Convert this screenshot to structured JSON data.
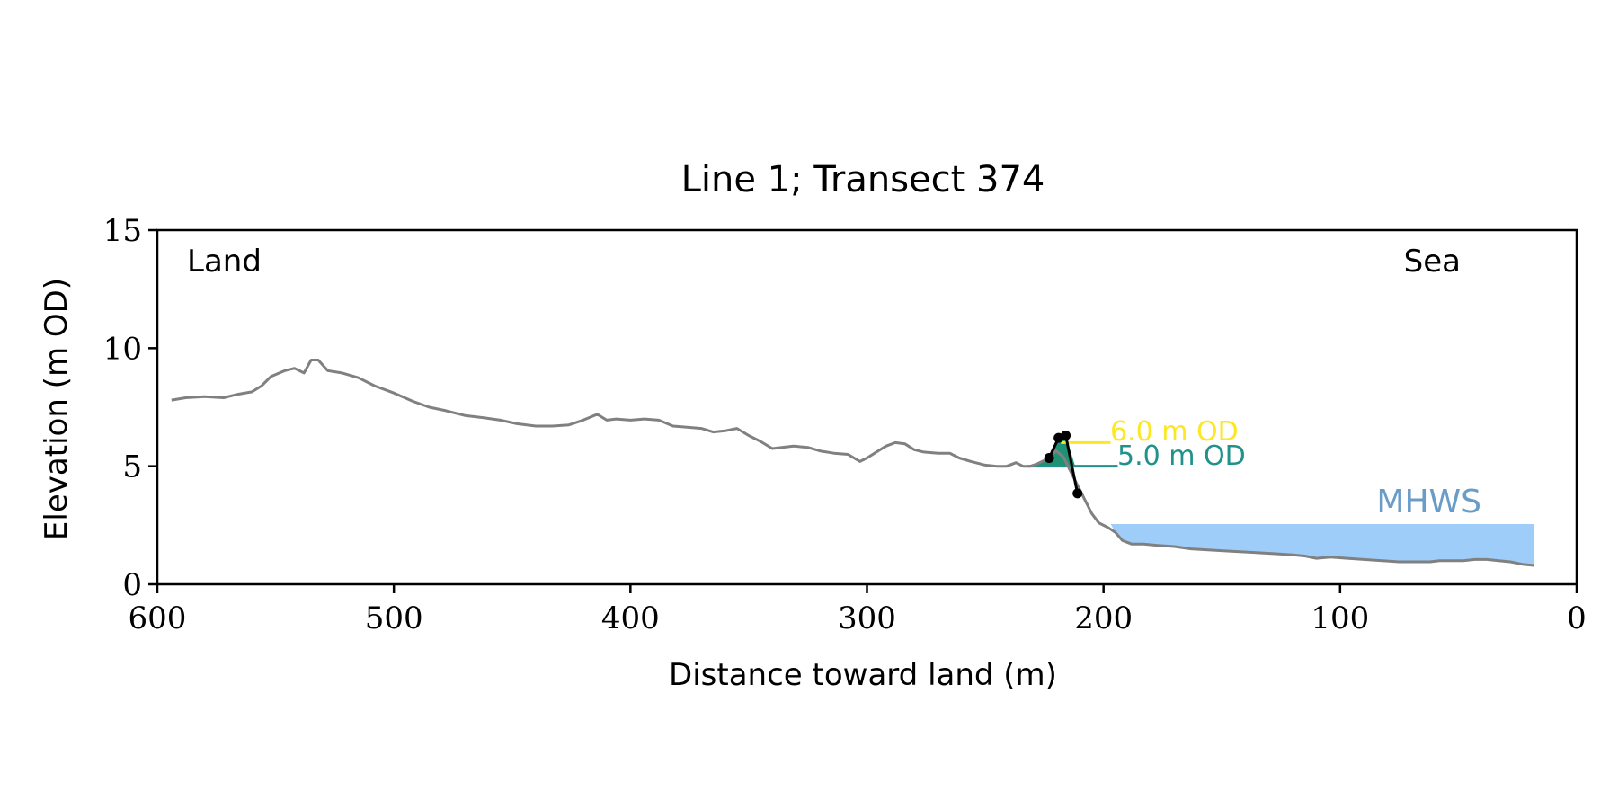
{
  "chart_data": {
    "type": "line",
    "title": "Line 1; Transect 374",
    "xlabel": "Distance toward land (m)",
    "ylabel": "Elevation (m OD)",
    "xlim": [
      600,
      0
    ],
    "ylim": [
      0,
      15
    ],
    "xticks": [
      600,
      500,
      400,
      300,
      200,
      100,
      0
    ],
    "yticks": [
      0,
      5,
      10,
      15
    ],
    "grid": false,
    "annotations": {
      "land": "Land",
      "sea": "Sea"
    },
    "series": [
      {
        "color": "#808080",
        "x": [
          594,
          588,
          580,
          572,
          566,
          560,
          556,
          552,
          546,
          542,
          538,
          535,
          532,
          528,
          522,
          515,
          508,
          500,
          492,
          485,
          478,
          470,
          462,
          455,
          448,
          440,
          433,
          426,
          420,
          414,
          410,
          406,
          400,
          394,
          388,
          382,
          376,
          370,
          365,
          360,
          355,
          350,
          345,
          340,
          336,
          331,
          325,
          320,
          314,
          308,
          303,
          300,
          296,
          292,
          288,
          284,
          280,
          276,
          270,
          265,
          261,
          256,
          250,
          245,
          241,
          237,
          234,
          231,
          228,
          224,
          220,
          217,
          214,
          211,
          208,
          205,
          202,
          198,
          195,
          192,
          188,
          183,
          177,
          170,
          163,
          155,
          146,
          137,
          128,
          120,
          115,
          110,
          104,
          97,
          90,
          82,
          75,
          68,
          62,
          58,
          53,
          48,
          43,
          38,
          33,
          28,
          23,
          18
        ],
        "y": [
          7.8,
          7.9,
          7.95,
          7.9,
          8.05,
          8.15,
          8.4,
          8.8,
          9.05,
          9.15,
          8.95,
          9.5,
          9.5,
          9.05,
          8.95,
          8.75,
          8.4,
          8.1,
          7.75,
          7.5,
          7.35,
          7.15,
          7.05,
          6.95,
          6.8,
          6.7,
          6.7,
          6.75,
          6.95,
          7.2,
          6.95,
          7.0,
          6.95,
          7.0,
          6.95,
          6.7,
          6.65,
          6.6,
          6.45,
          6.5,
          6.6,
          6.3,
          6.05,
          5.75,
          5.8,
          5.85,
          5.8,
          5.65,
          5.55,
          5.5,
          5.2,
          5.35,
          5.6,
          5.85,
          6.0,
          5.95,
          5.7,
          5.6,
          5.55,
          5.55,
          5.35,
          5.2,
          5.05,
          5.0,
          5.0,
          5.15,
          5.0,
          5.0,
          5.1,
          5.3,
          5.65,
          5.4,
          4.8,
          4.2,
          3.6,
          3.0,
          2.6,
          2.4,
          2.2,
          1.85,
          1.7,
          1.7,
          1.65,
          1.6,
          1.5,
          1.45,
          1.4,
          1.35,
          1.3,
          1.25,
          1.2,
          1.1,
          1.15,
          1.1,
          1.05,
          1.0,
          0.95,
          0.95,
          0.95,
          1.0,
          1.0,
          1.0,
          1.05,
          1.05,
          1.0,
          0.95,
          0.85,
          0.8
        ]
      },
      {
        "color": "#000000",
        "x": [
          223,
          219,
          216,
          211
        ],
        "y": [
          5.35,
          6.2,
          6.3,
          3.85
        ],
        "markers": true
      }
    ],
    "levels": [
      {
        "label": "6.0 m OD",
        "value": 6.0,
        "x_start": 218,
        "x_end": 197,
        "color": "#FDE725"
      },
      {
        "label": "5.0 m OD",
        "value": 5.0,
        "x_start": 232,
        "x_end": 194,
        "color": "#21918C"
      }
    ],
    "mhws": {
      "label": "MHWS",
      "value": 2.55,
      "x_start": 197,
      "x_end": 18,
      "color": "#9ECDFA",
      "label_color": "#6A9CC8"
    },
    "shaded_regions": [
      {
        "name": "above-5m-wedge",
        "color": "#1F9175"
      },
      {
        "name": "cliff-face",
        "color": "#C0C0C0"
      }
    ]
  }
}
